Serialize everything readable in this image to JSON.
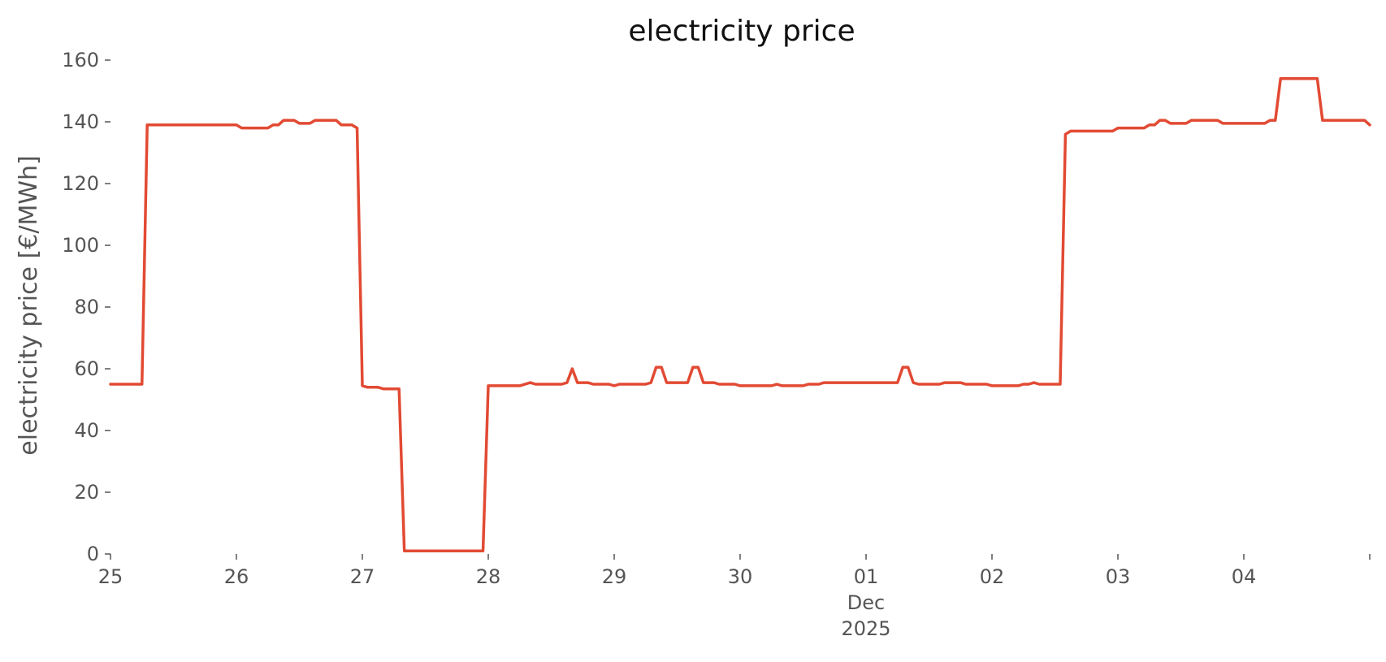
{
  "chart_data": {
    "type": "line",
    "title": "electricity price",
    "xlabel": "",
    "ylabel": "electricity price [€/MWh]",
    "x_range": [
      "2025-11-25T00:00",
      "2025-12-05T00:00"
    ],
    "ylim": [
      0,
      160
    ],
    "y_ticks": [
      0,
      20,
      40,
      60,
      80,
      100,
      120,
      140,
      160
    ],
    "x_ticks": [
      {
        "x": "2025-11-25T00:00",
        "label": "25"
      },
      {
        "x": "2025-11-26T00:00",
        "label": "26"
      },
      {
        "x": "2025-11-27T00:00",
        "label": "27"
      },
      {
        "x": "2025-11-28T00:00",
        "label": "28"
      },
      {
        "x": "2025-11-29T00:00",
        "label": "29"
      },
      {
        "x": "2025-11-30T00:00",
        "label": "30"
      },
      {
        "x": "2025-12-01T00:00",
        "label": "01",
        "sublabels": [
          "Dec",
          "2025"
        ]
      },
      {
        "x": "2025-12-02T00:00",
        "label": "02"
      },
      {
        "x": "2025-12-03T00:00",
        "label": "03"
      },
      {
        "x": "2025-12-04T00:00",
        "label": "04"
      },
      {
        "x": "2025-12-05T00:00",
        "label": ""
      }
    ],
    "grid": false,
    "line_color": "#e24a33",
    "series": [
      {
        "points": [
          [
            "2025-11-25T00:00",
            55
          ],
          [
            "2025-11-25T06:00",
            55
          ],
          [
            "2025-11-25T07:00",
            139
          ],
          [
            "2025-11-25T12:00",
            139
          ],
          [
            "2025-11-25T18:00",
            139
          ],
          [
            "2025-11-26T00:00",
            139
          ],
          [
            "2025-11-26T01:00",
            138
          ],
          [
            "2025-11-26T06:00",
            138
          ],
          [
            "2025-11-26T07:00",
            139
          ],
          [
            "2025-11-26T08:00",
            139
          ],
          [
            "2025-11-26T09:00",
            140.5
          ],
          [
            "2025-11-26T11:00",
            140.5
          ],
          [
            "2025-11-26T12:00",
            139.5
          ],
          [
            "2025-11-26T14:00",
            139.5
          ],
          [
            "2025-11-26T15:00",
            140.5
          ],
          [
            "2025-11-26T19:00",
            140.5
          ],
          [
            "2025-11-26T20:00",
            139
          ],
          [
            "2025-11-26T22:00",
            139
          ],
          [
            "2025-11-26T23:00",
            138
          ],
          [
            "2025-11-27T00:00",
            54.5
          ],
          [
            "2025-11-27T01:00",
            54
          ],
          [
            "2025-11-27T03:00",
            54
          ],
          [
            "2025-11-27T04:00",
            53.5
          ],
          [
            "2025-11-27T07:00",
            53.5
          ],
          [
            "2025-11-27T08:00",
            1
          ],
          [
            "2025-11-27T12:00",
            1
          ],
          [
            "2025-11-27T18:00",
            1
          ],
          [
            "2025-11-27T23:00",
            1
          ],
          [
            "2025-11-28T00:00",
            54.5
          ],
          [
            "2025-11-28T06:00",
            54.5
          ],
          [
            "2025-11-28T08:00",
            55.5
          ],
          [
            "2025-11-28T09:00",
            55
          ],
          [
            "2025-11-28T14:00",
            55
          ],
          [
            "2025-11-28T15:00",
            55.5
          ],
          [
            "2025-11-28T16:00",
            60
          ],
          [
            "2025-11-28T17:00",
            55.5
          ],
          [
            "2025-11-28T19:00",
            55.5
          ],
          [
            "2025-11-28T20:00",
            55
          ],
          [
            "2025-11-28T23:00",
            55
          ],
          [
            "2025-11-29T00:00",
            54.5
          ],
          [
            "2025-11-29T01:00",
            55
          ],
          [
            "2025-11-29T06:00",
            55
          ],
          [
            "2025-11-29T07:00",
            55.5
          ],
          [
            "2025-11-29T08:00",
            60.5
          ],
          [
            "2025-11-29T09:00",
            60.5
          ],
          [
            "2025-11-29T10:00",
            55.5
          ],
          [
            "2025-11-29T14:00",
            55.5
          ],
          [
            "2025-11-29T15:00",
            60.5
          ],
          [
            "2025-11-29T16:00",
            60.5
          ],
          [
            "2025-11-29T17:00",
            55.5
          ],
          [
            "2025-11-29T19:00",
            55.5
          ],
          [
            "2025-11-29T20:00",
            55
          ],
          [
            "2025-11-29T23:00",
            55
          ],
          [
            "2025-11-30T00:00",
            54.5
          ],
          [
            "2025-11-30T06:00",
            54.5
          ],
          [
            "2025-11-30T07:00",
            55
          ],
          [
            "2025-11-30T08:00",
            54.5
          ],
          [
            "2025-11-30T12:00",
            54.5
          ],
          [
            "2025-11-30T13:00",
            55
          ],
          [
            "2025-11-30T15:00",
            55
          ],
          [
            "2025-11-30T16:00",
            55.5
          ],
          [
            "2025-12-01T00:00",
            55.5
          ],
          [
            "2025-12-01T06:00",
            55.5
          ],
          [
            "2025-12-01T07:00",
            60.5
          ],
          [
            "2025-12-01T08:00",
            60.5
          ],
          [
            "2025-12-01T09:00",
            55.5
          ],
          [
            "2025-12-01T10:00",
            55
          ],
          [
            "2025-12-01T14:00",
            55
          ],
          [
            "2025-12-01T15:00",
            55.5
          ],
          [
            "2025-12-01T18:00",
            55.5
          ],
          [
            "2025-12-01T19:00",
            55
          ],
          [
            "2025-12-01T23:00",
            55
          ],
          [
            "2025-12-02T00:00",
            54.5
          ],
          [
            "2025-12-02T05:00",
            54.5
          ],
          [
            "2025-12-02T06:00",
            55
          ],
          [
            "2025-12-02T07:00",
            55
          ],
          [
            "2025-12-02T08:00",
            55.5
          ],
          [
            "2025-12-02T09:00",
            55
          ],
          [
            "2025-12-02T13:00",
            55
          ],
          [
            "2025-12-02T14:00",
            136
          ],
          [
            "2025-12-02T15:00",
            137
          ],
          [
            "2025-12-02T18:00",
            137
          ],
          [
            "2025-12-02T23:00",
            137
          ],
          [
            "2025-12-03T00:00",
            138
          ],
          [
            "2025-12-03T05:00",
            138
          ],
          [
            "2025-12-03T06:00",
            139
          ],
          [
            "2025-12-03T07:00",
            139
          ],
          [
            "2025-12-03T08:00",
            140.5
          ],
          [
            "2025-12-03T09:00",
            140.5
          ],
          [
            "2025-12-03T10:00",
            139.5
          ],
          [
            "2025-12-03T13:00",
            139.5
          ],
          [
            "2025-12-03T14:00",
            140.5
          ],
          [
            "2025-12-03T19:00",
            140.5
          ],
          [
            "2025-12-03T20:00",
            139.5
          ],
          [
            "2025-12-04T00:00",
            139.5
          ],
          [
            "2025-12-04T04:00",
            139.5
          ],
          [
            "2025-12-04T05:00",
            140.5
          ],
          [
            "2025-12-04T06:00",
            140.5
          ],
          [
            "2025-12-04T07:00",
            154
          ],
          [
            "2025-12-04T12:00",
            154
          ],
          [
            "2025-12-04T14:00",
            154
          ],
          [
            "2025-12-04T15:00",
            140.5
          ],
          [
            "2025-12-04T20:00",
            140.5
          ],
          [
            "2025-12-04T23:00",
            140.5
          ],
          [
            "2025-12-05T00:00",
            139
          ]
        ]
      }
    ]
  }
}
